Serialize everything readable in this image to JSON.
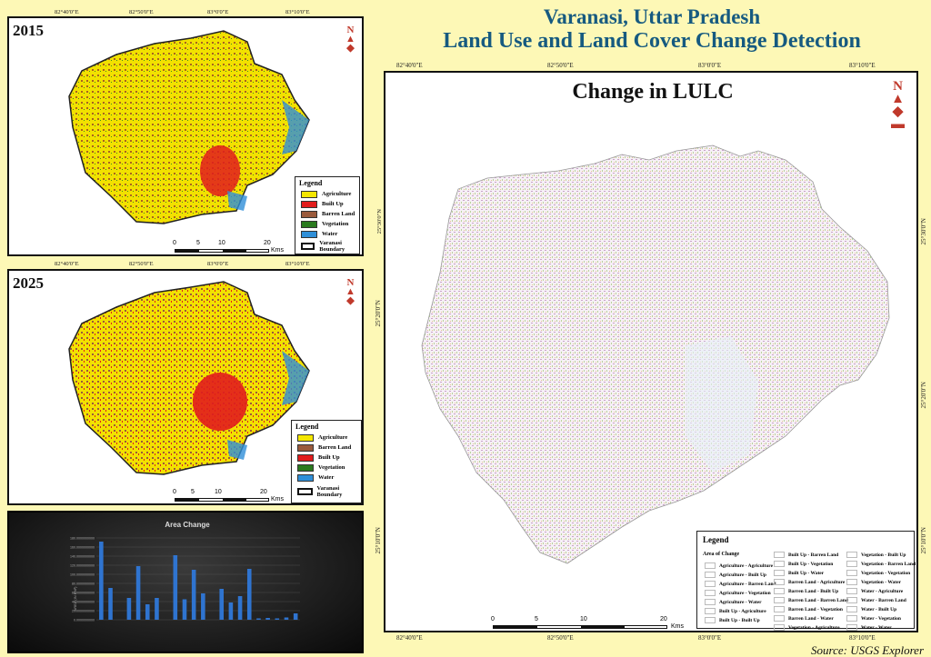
{
  "title_line1": "Varanasi, Uttar Pradesh",
  "title_line2": "Land Use and Land Cover Change Detection",
  "source": "Source: USGS Explorer",
  "coords": {
    "lon": [
      "82°40'0\"E",
      "82°50'0\"E",
      "83°0'0\"E",
      "83°10'0\"E"
    ],
    "lat": [
      "25°30'0\"N",
      "25°20'0\"N",
      "25°10'0\"N"
    ]
  },
  "map2015": {
    "year": "2015",
    "legend_title": "Legend",
    "legend": [
      {
        "label": "Agriculture",
        "color": "#f4e600"
      },
      {
        "label": "Built Up",
        "color": "#e21c1c"
      },
      {
        "label": "Barren Land",
        "color": "#9a5a3c"
      },
      {
        "label": "Vegetation",
        "color": "#2a7a1e"
      },
      {
        "label": "Water",
        "color": "#2f8fd8"
      }
    ],
    "boundary": "Varanasi Boundary",
    "scale": {
      "ticks": [
        "0",
        "5",
        "10",
        "20"
      ],
      "unit": "Kms"
    }
  },
  "map2025": {
    "year": "2025",
    "legend_title": "Legend",
    "legend": [
      {
        "label": "Agriculture",
        "color": "#f4e600"
      },
      {
        "label": "Barren Land",
        "color": "#9a5a3c"
      },
      {
        "label": "Built Up",
        "color": "#e21c1c"
      },
      {
        "label": "Vegetation",
        "color": "#2a7a1e"
      },
      {
        "label": "Water",
        "color": "#2f8fd8"
      }
    ],
    "boundary": "Varanasi Boundary",
    "scale": {
      "ticks": [
        "0",
        "5",
        "10",
        "20"
      ],
      "unit": "Kms"
    }
  },
  "chart": {
    "title": "Area Change",
    "ylabel": "AREA (IN KM²)",
    "yticks": [
      "0.0000000000",
      "20.0000000000",
      "40.0000000000",
      "60.0000000000",
      "80.0000000000",
      "100.0000000000",
      "120.0000000000",
      "140.0000000000",
      "160.0000000000",
      "180.0000000000"
    ],
    "values": [
      172,
      70,
      0,
      48,
      118,
      34,
      48,
      0,
      142,
      45,
      110,
      58,
      0,
      68,
      38,
      52,
      112,
      3,
      4,
      3,
      5,
      14
    ],
    "bar_color": "#2f74d0"
  },
  "change_map": {
    "title": "Change in LULC",
    "legend_title": "Legend",
    "legend_subtitle": "Area of Change",
    "legend_col1": [
      "Agriculture - Agriculture",
      "Agriculture - Built Up",
      "Agriculture - Barren Land",
      "Agriculture - Vegetation",
      "Agriculture - Water",
      "Built Up - Agriculture",
      "Built Up - Built Up"
    ],
    "legend_col2": [
      "Built Up - Barren Land",
      "Built Up - Vegetation",
      "Built Up - Water",
      "Barren Land - Agriculture",
      "Barren Land - Built Up",
      "Barren Land - Barren Land",
      "Barren Land - Vegetation",
      "Barren Land - Water",
      "Vegetation - Agriculture"
    ],
    "legend_col3": [
      "Vegetation - Built Up",
      "Vegetation - Barren Land",
      "Vegetation - Vegetation",
      "Vegetation - Water",
      "Water - Agriculture",
      "Water - Barren Land",
      "Water - Built Up",
      "Water - Vegetation",
      "Water - Water"
    ],
    "scale": {
      "ticks": [
        "0",
        "5",
        "10",
        "20"
      ],
      "unit": "Kms"
    }
  }
}
